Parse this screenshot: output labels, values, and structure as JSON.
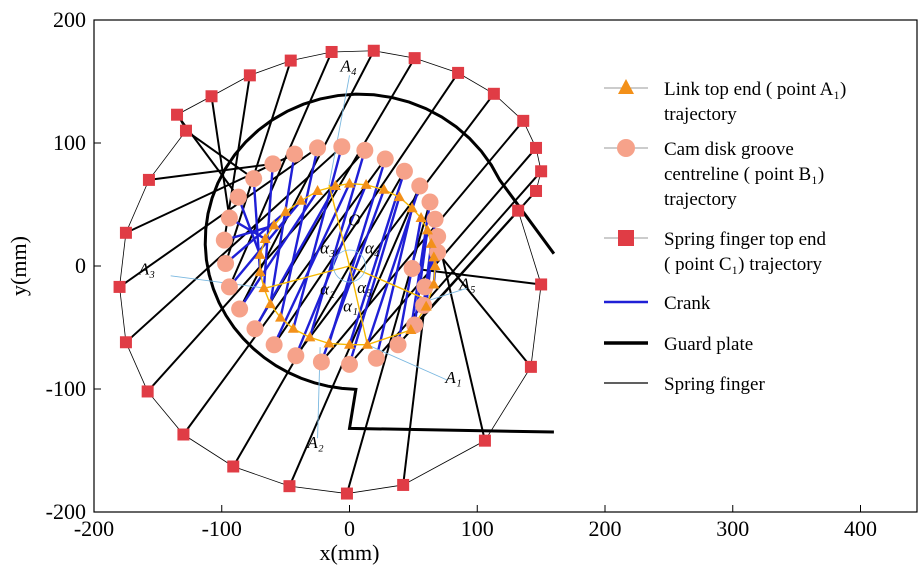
{
  "chart_data": {
    "type": "scatter",
    "xlabel": "x(mm)",
    "ylabel": "y(mm)",
    "xlim": [
      -200,
      445
    ],
    "ylim": [
      -200,
      200
    ],
    "xticks": [
      -200,
      -100,
      0,
      100,
      200,
      300,
      400
    ],
    "yticks": [
      -200,
      -100,
      0,
      100,
      200
    ],
    "grid": false,
    "legend_position": "right",
    "legend": [
      {
        "lines": [
          "Link top end ( point A₁)",
          "trajectory"
        ],
        "marker": "triangle",
        "color": "#f39019"
      },
      {
        "lines": [
          "Cam disk groove",
          "centreline ( point B₁)",
          "trajectory"
        ],
        "marker": "circle",
        "color": "#f6a28a"
      },
      {
        "lines": [
          "Spring finger top end",
          "( point C₁) trajectory"
        ],
        "marker": "square",
        "color": "#e03c45"
      },
      {
        "lines": [
          "Crank"
        ],
        "marker": "line",
        "color": "#1f1fd6"
      },
      {
        "lines": [
          "Guard plate"
        ],
        "marker": "thickline",
        "color": "#000000"
      },
      {
        "lines": [
          "Spring finger"
        ],
        "marker": "thinline",
        "color": "#000000"
      }
    ],
    "colors": {
      "link": "#f39019",
      "cam": "#f6a28a",
      "finger_end": "#e03c45",
      "crank": "#1f1fd6",
      "region_lines": "#f5b800",
      "leader": "#7ab8e0"
    },
    "series": [
      {
        "name": "Link top end ( point A₁) trajectory",
        "points": [
          [
            67,
            0
          ],
          [
            66,
            -15
          ],
          [
            60,
            -33
          ],
          [
            48,
            -52
          ],
          [
            14,
            -64
          ],
          [
            0,
            -64
          ],
          [
            -16,
            -63
          ],
          [
            -31,
            -58
          ],
          [
            -44,
            -51
          ],
          [
            -54,
            -42
          ],
          [
            -62,
            -31
          ],
          [
            -67,
            -18
          ],
          [
            -70,
            -5
          ],
          [
            -70,
            9
          ],
          [
            -66,
            22
          ],
          [
            -59,
            33
          ],
          [
            -50,
            44
          ],
          [
            -38,
            53
          ],
          [
            -25,
            61
          ],
          [
            -11,
            65
          ],
          [
            0,
            67
          ],
          [
            13,
            66
          ],
          [
            27,
            62
          ],
          [
            39,
            56
          ],
          [
            49,
            47
          ],
          [
            56,
            39
          ],
          [
            61,
            29
          ],
          [
            64,
            18
          ],
          [
            66,
            7
          ]
        ]
      },
      {
        "name": "Cam disk groove centreline ( point B₁) trajectory",
        "points": [
          [
            49,
            -2
          ],
          [
            69,
            11
          ],
          [
            69,
            24
          ],
          [
            67,
            38
          ],
          [
            63,
            52
          ],
          [
            55,
            65
          ],
          [
            43,
            77
          ],
          [
            28,
            87
          ],
          [
            12,
            94
          ],
          [
            -6,
            97
          ],
          [
            -25,
            96
          ],
          [
            -43,
            91
          ],
          [
            -60,
            83
          ],
          [
            -75,
            71
          ],
          [
            -87,
            56
          ],
          [
            -94,
            39
          ],
          [
            -98,
            21
          ],
          [
            -97,
            2
          ],
          [
            -94,
            -17
          ],
          [
            -86,
            -35
          ],
          [
            -74,
            -51
          ],
          [
            -59,
            -64
          ],
          [
            -42,
            -73
          ],
          [
            -22,
            -78
          ],
          [
            0,
            -80
          ],
          [
            21,
            -75
          ],
          [
            38,
            -64
          ],
          [
            51,
            -48
          ],
          [
            58,
            -32
          ],
          [
            59,
            -17
          ]
        ]
      },
      {
        "name": "Spring finger top end ( point C₁) trajectory",
        "points": [
          [
            150,
            -15
          ],
          [
            142,
            -82
          ],
          [
            106,
            -142
          ],
          [
            42,
            -178
          ],
          [
            -2,
            -185
          ],
          [
            -47,
            -179
          ],
          [
            -91,
            -163
          ],
          [
            -130,
            -137
          ],
          [
            -158,
            -102
          ],
          [
            -175,
            -62
          ],
          [
            -180,
            -17
          ],
          [
            -175,
            27
          ],
          [
            -157,
            70
          ],
          [
            -128,
            110
          ],
          [
            -135,
            123
          ],
          [
            -108,
            138
          ],
          [
            -78,
            155
          ],
          [
            -46,
            167
          ],
          [
            -14,
            174
          ],
          [
            19,
            175
          ],
          [
            51,
            169
          ],
          [
            85,
            157
          ],
          [
            113,
            140
          ],
          [
            136,
            118
          ],
          [
            146,
            96
          ],
          [
            150,
            77
          ],
          [
            146,
            61
          ],
          [
            132,
            45
          ]
        ]
      }
    ],
    "annotations": [
      "O",
      "A₁",
      "A₂",
      "A₃",
      "A₄",
      "A₅",
      "α₁",
      "α₂",
      "α₃",
      "α₄",
      "α₅"
    ]
  }
}
